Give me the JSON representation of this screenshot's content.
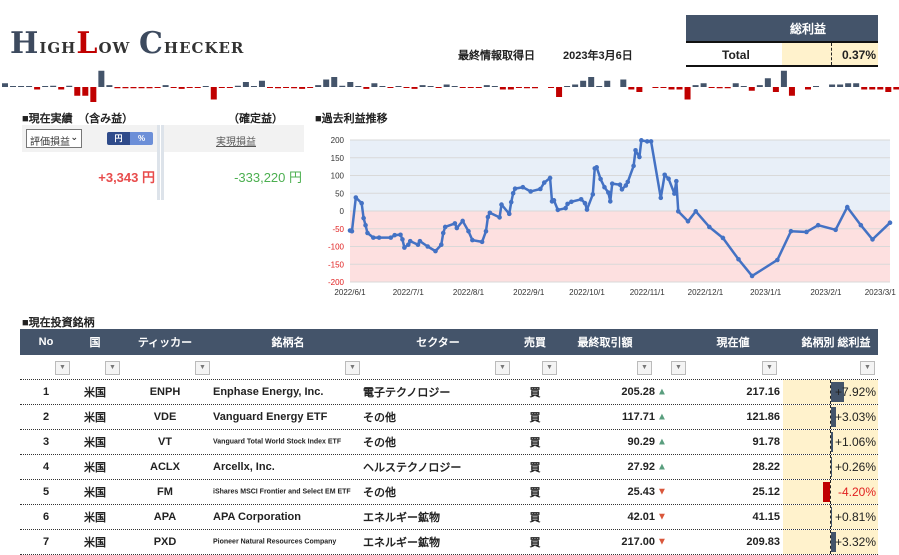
{
  "app": {
    "logo": "HighLow Checker",
    "logo_parts": [
      "H",
      "igh",
      "L",
      "ow ",
      "C",
      "hecker"
    ]
  },
  "last_update": {
    "label": "最終情報取得日",
    "date": "2023年3月6日"
  },
  "total": {
    "header": "総利益",
    "label": "Total",
    "value": "0.37%"
  },
  "sparkline": [
    3,
    0.5,
    0.5,
    0.5,
    -2,
    0.5,
    1,
    -2,
    1,
    -7,
    -7,
    -12,
    13,
    1.5,
    -1,
    -1,
    -1,
    -1,
    -1,
    -0.5,
    1.5,
    -0.5,
    -1.5,
    -0.5,
    -0.5,
    0.3,
    -10,
    -0.5,
    -0.5,
    1,
    4,
    0.5,
    5,
    -0.5,
    -1,
    -0.5,
    -1,
    -1.5,
    -0.5,
    1.5,
    6,
    8,
    1,
    4,
    0.5,
    -1.5,
    3,
    0.3,
    -0.5,
    0.5,
    -0.5,
    -1.5,
    1.5,
    0.3,
    -0.5,
    2,
    0.3,
    -0.5,
    -0.5,
    -0.5,
    1.5,
    0.3,
    -2,
    -2,
    -0.5,
    -1,
    -1,
    0,
    -0.5,
    -8,
    0.3,
    2,
    5,
    8,
    0.3,
    5,
    0,
    6,
    -2,
    -4,
    0,
    -0.5,
    -0.5,
    -2,
    -2,
    -10,
    1.5,
    3,
    -0.5,
    -1,
    -1,
    3,
    0.3,
    -3,
    1.5,
    7,
    -4,
    13,
    -7,
    0,
    -2,
    0.3,
    0,
    2,
    2,
    3,
    3,
    -2,
    -2,
    -2,
    -4,
    -2
  ],
  "colors": {
    "header_bg": "#44546a",
    "positive": "#44546a",
    "negative": "#c00000",
    "cream": "#fff2cc",
    "line": "#4472c4"
  },
  "performance": {
    "title": "■現在実績　（含み益）",
    "realized_title": "（確定益）",
    "select_value": "評価損益",
    "toggle": [
      "円",
      "%"
    ],
    "realized_label": "実現損益",
    "unrealized_value": "+3,343 円",
    "realized_value": "-333,220 円"
  },
  "chart_title": "■過去利益推移",
  "chart_data": {
    "type": "line",
    "title": "過去利益推移",
    "start_date": "2022/6/1",
    "x_unit": "days since start",
    "x_ticks": [
      {
        "day": 0,
        "label": "2022/6/1"
      },
      {
        "day": 30,
        "label": "2022/7/1"
      },
      {
        "day": 61,
        "label": "2022/8/1"
      },
      {
        "day": 92,
        "label": "2022/9/1"
      },
      {
        "day": 122,
        "label": "2022/10/1"
      },
      {
        "day": 153,
        "label": "2022/11/1"
      },
      {
        "day": 183,
        "label": "2022/12/1"
      },
      {
        "day": 214,
        "label": "2023/1/1"
      },
      {
        "day": 245,
        "label": "2023/2/1"
      },
      {
        "day": 273,
        "label": "2023/3/1"
      }
    ],
    "y_ticks": [
      "200",
      "150",
      "100",
      "50",
      "0",
      "-50",
      "-100",
      "-150",
      "-200"
    ],
    "ylim": [
      -200,
      200
    ],
    "xlim": [
      0,
      278
    ],
    "grid": true,
    "series": [
      {
        "name": "利益",
        "points": [
          [
            0,
            -55
          ],
          [
            1,
            -57
          ],
          [
            3,
            38
          ],
          [
            6,
            22
          ],
          [
            7,
            -20
          ],
          [
            8,
            -40
          ],
          [
            9,
            -62
          ],
          [
            12,
            -75
          ],
          [
            15,
            -75
          ],
          [
            21,
            -75
          ],
          [
            23,
            -68
          ],
          [
            26,
            -67
          ],
          [
            27,
            -80
          ],
          [
            28,
            -103
          ],
          [
            30,
            -95
          ],
          [
            31,
            -85
          ],
          [
            35,
            -95
          ],
          [
            36,
            -85
          ],
          [
            40,
            -100
          ],
          [
            44,
            -113
          ],
          [
            47,
            -95
          ],
          [
            48,
            -62
          ],
          [
            49,
            -45
          ],
          [
            54,
            -35
          ],
          [
            55,
            -48
          ],
          [
            58,
            -28
          ],
          [
            61,
            -57
          ],
          [
            63,
            -82
          ],
          [
            68,
            -87
          ],
          [
            70,
            -57
          ],
          [
            71,
            -17
          ],
          [
            72,
            -5
          ],
          [
            77,
            -18
          ],
          [
            78,
            18
          ],
          [
            82,
            -8
          ],
          [
            83,
            25
          ],
          [
            84,
            50
          ],
          [
            85,
            63
          ],
          [
            89,
            67
          ],
          [
            93,
            55
          ],
          [
            98,
            62
          ],
          [
            100,
            80
          ],
          [
            103,
            93
          ],
          [
            104,
            27
          ],
          [
            105,
            30
          ],
          [
            107,
            3
          ],
          [
            111,
            8
          ],
          [
            112,
            20
          ],
          [
            114,
            26
          ],
          [
            119,
            33
          ],
          [
            121,
            22
          ],
          [
            122,
            4
          ],
          [
            125,
            47
          ],
          [
            126,
            120
          ],
          [
            127,
            123
          ],
          [
            129,
            90
          ],
          [
            131,
            67
          ],
          [
            133,
            52
          ],
          [
            134,
            27
          ],
          [
            135,
            77
          ],
          [
            139,
            74
          ],
          [
            140,
            61
          ],
          [
            142,
            72
          ],
          [
            143,
            82
          ],
          [
            146,
            127
          ],
          [
            147,
            171
          ],
          [
            149,
            152
          ],
          [
            150,
            199
          ],
          [
            153,
            196
          ],
          [
            155,
            196
          ],
          [
            160,
            37
          ],
          [
            162,
            102
          ],
          [
            164,
            91
          ],
          [
            167,
            49
          ],
          [
            168,
            84
          ],
          [
            169,
            -1
          ],
          [
            174,
            -29
          ],
          [
            178,
            -1
          ],
          [
            185,
            -45
          ],
          [
            192,
            -76
          ],
          [
            200,
            -136
          ],
          [
            207,
            -183
          ],
          [
            220,
            -138
          ],
          [
            227,
            -57
          ],
          [
            235,
            -59
          ],
          [
            241,
            -40
          ],
          [
            250,
            -53
          ],
          [
            256,
            11
          ],
          [
            263,
            -40
          ],
          [
            269,
            -80
          ],
          [
            278,
            -33
          ]
        ]
      }
    ]
  },
  "holdings": {
    "title": "■現在投資銘柄",
    "columns": [
      "No",
      "国",
      "ティッカー",
      "銘柄名",
      "セクター",
      "売買",
      "最終取引額",
      "現在値",
      "銘柄別 総利益"
    ],
    "rows": [
      {
        "no": "1",
        "country": "米国",
        "ticker": "ENPH",
        "name": "Enphase Energy, Inc.",
        "small": false,
        "sector": "電子テクノロジー",
        "side": "買",
        "last": "205.28",
        "dir": "up",
        "current": "217.16",
        "pct": "+7.92%",
        "pct_value": 7.92
      },
      {
        "no": "2",
        "country": "米国",
        "ticker": "VDE",
        "name": "Vanguard Energy ETF",
        "small": false,
        "sector": "その他",
        "side": "買",
        "last": "117.71",
        "dir": "up",
        "current": "121.86",
        "pct": "+3.03%",
        "pct_value": 3.03
      },
      {
        "no": "3",
        "country": "米国",
        "ticker": "VT",
        "name": "Vanguard Total World Stock Index ETF",
        "small": true,
        "sector": "その他",
        "side": "買",
        "last": "90.29",
        "dir": "up",
        "current": "91.78",
        "pct": "+1.06%",
        "pct_value": 1.06
      },
      {
        "no": "4",
        "country": "米国",
        "ticker": "ACLX",
        "name": "Arcellx, Inc.",
        "small": false,
        "sector": "ヘルステクノロジー",
        "side": "買",
        "last": "27.92",
        "dir": "up",
        "current": "28.22",
        "pct": "+0.26%",
        "pct_value": 0.26
      },
      {
        "no": "5",
        "country": "米国",
        "ticker": "FM",
        "name": "iShares MSCI Frontier and Select EM ETF",
        "small": true,
        "sector": "その他",
        "side": "買",
        "last": "25.43",
        "dir": "down",
        "current": "25.12",
        "pct": "-4.20%",
        "pct_value": -4.2
      },
      {
        "no": "6",
        "country": "米国",
        "ticker": "APA",
        "name": "APA Corporation",
        "small": false,
        "sector": "エネルギー鉱物",
        "side": "買",
        "last": "42.01",
        "dir": "down",
        "current": "41.15",
        "pct": "+0.81%",
        "pct_value": 0.81
      },
      {
        "no": "7",
        "country": "米国",
        "ticker": "PXD",
        "name": "Pioneer Natural Resources Company",
        "small": true,
        "sector": "エネルギー鉱物",
        "side": "買",
        "last": "217.00",
        "dir": "down",
        "current": "209.83",
        "pct": "+3.32%",
        "pct_value": 3.32
      }
    ]
  }
}
